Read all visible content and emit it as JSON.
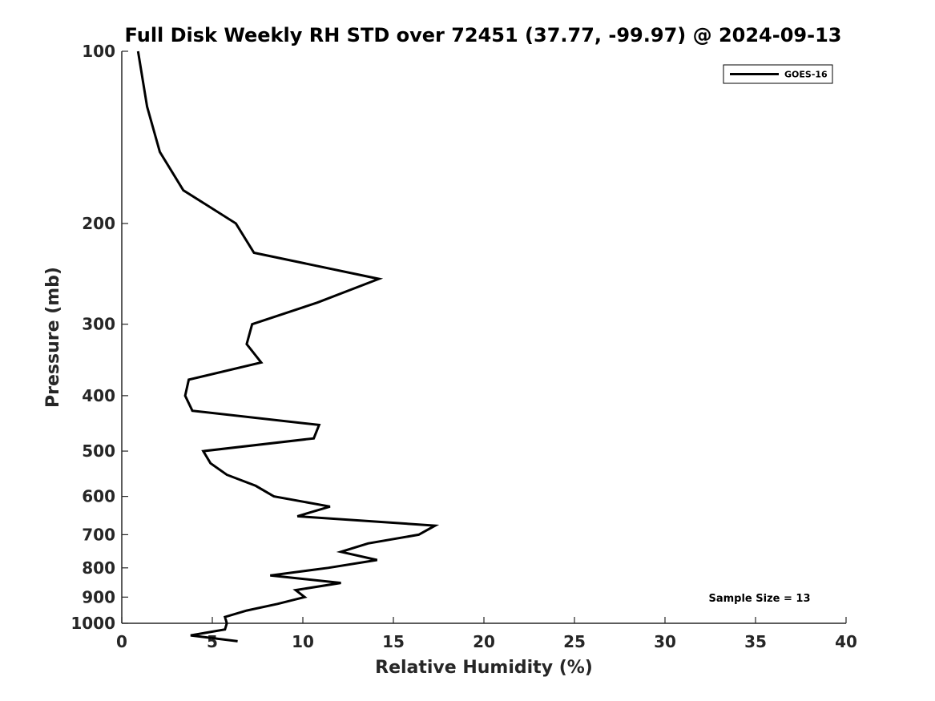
{
  "chart_data": {
    "type": "line",
    "title": "Full Disk Weekly RH STD over 72451 (37.77, -99.97) @ 2024-09-13",
    "xlabel": "Relative Humidity (%)",
    "ylabel": "Pressure (mb)",
    "xlim": [
      0,
      40
    ],
    "ylim": [
      100,
      1000
    ],
    "yscale": "log",
    "yreversed": true,
    "x_ticks": [
      0,
      5,
      10,
      15,
      20,
      25,
      30,
      35,
      40
    ],
    "x_tick_labels": [
      "0",
      "5",
      "10",
      "15",
      "20",
      "25",
      "30",
      "35",
      "40"
    ],
    "y_ticks": [
      100,
      200,
      300,
      400,
      500,
      600,
      700,
      800,
      900,
      1000
    ],
    "y_tick_labels": [
      "100",
      "200",
      "300",
      "400",
      "500",
      "600",
      "700",
      "800",
      "900",
      "1000"
    ],
    "grid": false,
    "legend_position": "top-right",
    "annotation": "Sample Size = 13",
    "series": [
      {
        "name": "GOES-16",
        "color": "#000000",
        "points": [
          {
            "x": 0.9,
            "y": 100
          },
          {
            "x": 1.4,
            "y": 125
          },
          {
            "x": 2.1,
            "y": 150
          },
          {
            "x": 3.4,
            "y": 175
          },
          {
            "x": 6.3,
            "y": 200
          },
          {
            "x": 7.3,
            "y": 225
          },
          {
            "x": 14.2,
            "y": 250
          },
          {
            "x": 10.8,
            "y": 275
          },
          {
            "x": 7.2,
            "y": 300
          },
          {
            "x": 6.9,
            "y": 325
          },
          {
            "x": 7.7,
            "y": 350
          },
          {
            "x": 3.7,
            "y": 375
          },
          {
            "x": 3.5,
            "y": 400
          },
          {
            "x": 3.9,
            "y": 425
          },
          {
            "x": 10.9,
            "y": 450
          },
          {
            "x": 10.6,
            "y": 475
          },
          {
            "x": 4.5,
            "y": 500
          },
          {
            "x": 4.9,
            "y": 525
          },
          {
            "x": 5.8,
            "y": 550
          },
          {
            "x": 7.4,
            "y": 575
          },
          {
            "x": 8.4,
            "y": 600
          },
          {
            "x": 11.5,
            "y": 625
          },
          {
            "x": 9.7,
            "y": 650
          },
          {
            "x": 17.3,
            "y": 675
          },
          {
            "x": 16.4,
            "y": 700
          },
          {
            "x": 13.6,
            "y": 725
          },
          {
            "x": 12.1,
            "y": 750
          },
          {
            "x": 14.1,
            "y": 775
          },
          {
            "x": 11.4,
            "y": 800
          },
          {
            "x": 8.2,
            "y": 825
          },
          {
            "x": 12.1,
            "y": 850
          },
          {
            "x": 9.6,
            "y": 875
          },
          {
            "x": 10.1,
            "y": 900
          },
          {
            "x": 8.6,
            "y": 925
          },
          {
            "x": 6.9,
            "y": 950
          },
          {
            "x": 5.7,
            "y": 975
          },
          {
            "x": 5.8,
            "y": 1000
          },
          {
            "x": 5.7,
            "y": 1025
          },
          {
            "x": 3.8,
            "y": 1050
          },
          {
            "x": 6.4,
            "y": 1075
          }
        ]
      }
    ]
  }
}
